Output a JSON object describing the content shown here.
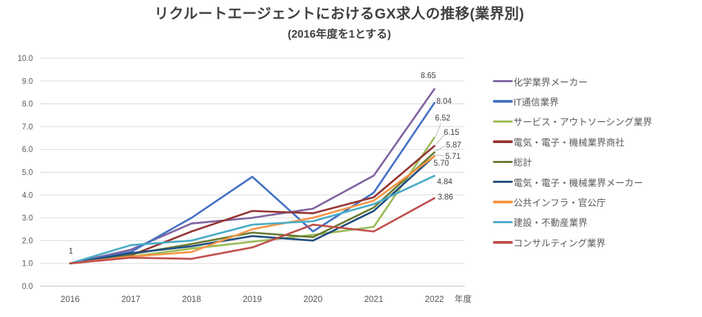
{
  "chart_data": {
    "type": "line",
    "title": "リクルートエージェントにおけるGX求人の推移(業界別)",
    "subtitle": "(2016年度を1とする)",
    "categories": [
      "2016",
      "2017",
      "2018",
      "2019",
      "2020",
      "2021",
      "2022"
    ],
    "x_axis_title": "年度",
    "ylim": [
      0,
      10
    ],
    "y_ticks": [
      "0.0",
      "1.0",
      "2.0",
      "3.0",
      "4.0",
      "5.0",
      "6.0",
      "7.0",
      "8.0",
      "9.0",
      "10.0"
    ],
    "grid": true,
    "legend_position": "right",
    "start_label": "1",
    "series": [
      {
        "name": "化学業界メーカー",
        "color": "#8064A2",
        "values": [
          1,
          1.6,
          2.75,
          3.0,
          3.4,
          4.85,
          8.65
        ],
        "end_label": "8.65"
      },
      {
        "name": "IT通信業界",
        "color": "#4472C4",
        "values": [
          1,
          1.5,
          3.0,
          4.8,
          2.4,
          4.1,
          8.04
        ],
        "end_label": "8.04"
      },
      {
        "name": "サービス・アウトソーシング業界",
        "color": "#9BBB59",
        "values": [
          1,
          1.3,
          1.65,
          1.95,
          2.25,
          2.6,
          6.52
        ],
        "end_label": "6.52"
      },
      {
        "name": "電気・電子・機械業界商社",
        "color": "#943634",
        "values": [
          1,
          1.35,
          2.4,
          3.3,
          3.2,
          3.9,
          6.15
        ],
        "end_label": "6.15"
      },
      {
        "name": "総計",
        "color": "#6A7B32",
        "values": [
          1,
          1.4,
          1.85,
          2.35,
          2.15,
          3.45,
          5.87
        ],
        "end_label": "5.87"
      },
      {
        "name": "電気・電子・機械業界メーカー",
        "color": "#204E7F",
        "values": [
          1,
          1.45,
          1.75,
          2.2,
          2.0,
          3.3,
          5.71
        ],
        "end_label": "5.71"
      },
      {
        "name": "公共インフラ・官公庁",
        "color": "#F79646",
        "values": [
          1,
          1.3,
          1.5,
          2.5,
          3.0,
          3.75,
          5.7
        ],
        "end_label": "5.70"
      },
      {
        "name": "建設・不動産業界",
        "color": "#4BACC6",
        "values": [
          1,
          1.8,
          2.0,
          2.7,
          2.85,
          3.6,
          4.84
        ],
        "end_label": "4.84"
      },
      {
        "name": "コンサルティング業界",
        "color": "#C0504D",
        "values": [
          1,
          1.25,
          1.2,
          1.7,
          2.7,
          2.4,
          3.86
        ],
        "end_label": "3.86"
      }
    ],
    "colors": {
      "gridline": "#D9D9D9",
      "axis_line": "#BFBFBF",
      "tick_text": "#595959",
      "data_label_text": "#404040",
      "leader_line": "#A6A6A6"
    }
  }
}
